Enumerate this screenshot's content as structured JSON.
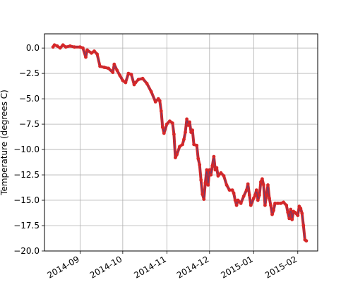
{
  "chart_data": {
    "type": "line",
    "ylabel": "Temperature (degrees C)",
    "xlabel": "",
    "title": "",
    "grid": true,
    "xlim": [
      "2014-08-07",
      "2015-02-15"
    ],
    "ylim": [
      -20,
      1.4
    ],
    "y_ticks": [
      {
        "value": 0,
        "label": "0.0"
      },
      {
        "value": -2.5,
        "label": "−2.5"
      },
      {
        "value": -5,
        "label": "−5.0"
      },
      {
        "value": -7.5,
        "label": "−7.5"
      },
      {
        "value": -10,
        "label": "−10.0"
      },
      {
        "value": -12.5,
        "label": "−12.5"
      },
      {
        "value": -15,
        "label": "−15.0"
      },
      {
        "value": -17.5,
        "label": "−17.5"
      },
      {
        "value": -20,
        "label": "−20.0"
      }
    ],
    "x_ticks": [
      {
        "value": "2014-09-01",
        "label": "2014-09"
      },
      {
        "value": "2014-10-01",
        "label": "2014-10"
      },
      {
        "value": "2014-11-01",
        "label": "2014-11"
      },
      {
        "value": "2014-12-01",
        "label": "2014-12"
      },
      {
        "value": "2015-01-01",
        "label": "2015-01"
      },
      {
        "value": "2015-02-01",
        "label": "2015-02"
      }
    ],
    "series": [
      {
        "color": "#d62728",
        "points": [
          [
            "2014-08-13",
            0.1
          ],
          [
            "2014-08-14",
            0.3
          ],
          [
            "2014-08-16",
            0.2
          ],
          [
            "2014-08-18",
            0.0
          ],
          [
            "2014-08-20",
            0.3
          ],
          [
            "2014-08-22",
            0.1
          ],
          [
            "2014-08-25",
            0.2
          ],
          [
            "2014-08-28",
            0.1
          ],
          [
            "2014-09-01",
            0.1
          ],
          [
            "2014-09-03",
            0.0
          ],
          [
            "2014-09-05",
            -0.9
          ],
          [
            "2014-09-06",
            -0.2
          ],
          [
            "2014-09-09",
            -0.5
          ],
          [
            "2014-09-11",
            -0.3
          ],
          [
            "2014-09-13",
            -0.6
          ],
          [
            "2014-09-15",
            -1.8
          ],
          [
            "2014-09-18",
            -1.9
          ],
          [
            "2014-09-21",
            -2.0
          ],
          [
            "2014-09-24",
            -2.4
          ],
          [
            "2014-09-25",
            -1.6
          ],
          [
            "2014-09-27",
            -2.2
          ],
          [
            "2014-09-29",
            -2.7
          ],
          [
            "2014-10-01",
            -3.2
          ],
          [
            "2014-10-03",
            -3.4
          ],
          [
            "2014-10-05",
            -2.5
          ],
          [
            "2014-10-07",
            -2.6
          ],
          [
            "2014-10-09",
            -3.6
          ],
          [
            "2014-10-10",
            -3.4
          ],
          [
            "2014-10-12",
            -3.1
          ],
          [
            "2014-10-15",
            -3.0
          ],
          [
            "2014-10-18",
            -3.5
          ],
          [
            "2014-10-21",
            -4.3
          ],
          [
            "2014-10-24",
            -5.3
          ],
          [
            "2014-10-26",
            -5.0
          ],
          [
            "2014-10-27",
            -5.2
          ],
          [
            "2014-10-28",
            -6.2
          ],
          [
            "2014-10-29",
            -7.8
          ],
          [
            "2014-10-30",
            -8.4
          ],
          [
            "2014-11-01",
            -7.5
          ],
          [
            "2014-11-03",
            -7.2
          ],
          [
            "2014-11-05",
            -7.4
          ],
          [
            "2014-11-06",
            -8.5
          ],
          [
            "2014-11-07",
            -10.8
          ],
          [
            "2014-11-08",
            -10.5
          ],
          [
            "2014-11-10",
            -9.7
          ],
          [
            "2014-11-12",
            -9.5
          ],
          [
            "2014-11-13",
            -9.0
          ],
          [
            "2014-11-14",
            -8.3
          ],
          [
            "2014-11-15",
            -7.0
          ],
          [
            "2014-11-16",
            -7.6
          ],
          [
            "2014-11-17",
            -7.3
          ],
          [
            "2014-11-18",
            -8.3
          ],
          [
            "2014-11-19",
            -8.1
          ],
          [
            "2014-11-20",
            -9.5
          ],
          [
            "2014-11-22",
            -9.6
          ],
          [
            "2014-11-23",
            -10.9
          ],
          [
            "2014-11-24",
            -11.5
          ],
          [
            "2014-11-25",
            -13.0
          ],
          [
            "2014-11-26",
            -14.4
          ],
          [
            "2014-11-27",
            -14.9
          ],
          [
            "2014-11-28",
            -13.3
          ],
          [
            "2014-11-29",
            -12.0
          ],
          [
            "2014-11-30",
            -13.5
          ],
          [
            "2014-12-01",
            -12.0
          ],
          [
            "2014-12-02",
            -12.5
          ],
          [
            "2014-12-03",
            -11.6
          ],
          [
            "2014-12-04",
            -10.7
          ],
          [
            "2014-12-05",
            -12.0
          ],
          [
            "2014-12-06",
            -11.8
          ],
          [
            "2014-12-07",
            -12.6
          ],
          [
            "2014-12-09",
            -12.3
          ],
          [
            "2014-12-11",
            -12.6
          ],
          [
            "2014-12-13",
            -13.5
          ],
          [
            "2014-12-15",
            -14.0
          ],
          [
            "2014-12-17",
            -14.0
          ],
          [
            "2014-12-18",
            -14.3
          ],
          [
            "2014-12-19",
            -15.0
          ],
          [
            "2014-12-20",
            -15.5
          ],
          [
            "2014-12-21",
            -15.0
          ],
          [
            "2014-12-23",
            -15.3
          ],
          [
            "2014-12-25",
            -14.6
          ],
          [
            "2014-12-27",
            -14.0
          ],
          [
            "2014-12-28",
            -13.4
          ],
          [
            "2014-12-29",
            -14.5
          ],
          [
            "2014-12-30",
            -15.5
          ],
          [
            "2015-01-01",
            -14.8
          ],
          [
            "2015-01-02",
            -14.5
          ],
          [
            "2015-01-03",
            -14.0
          ],
          [
            "2015-01-04",
            -15.0
          ],
          [
            "2015-01-05",
            -14.5
          ],
          [
            "2015-01-06",
            -13.2
          ],
          [
            "2015-01-07",
            -12.9
          ],
          [
            "2015-01-08",
            -13.5
          ],
          [
            "2015-01-09",
            -15.5
          ],
          [
            "2015-01-10",
            -14.5
          ],
          [
            "2015-01-11",
            -13.5
          ],
          [
            "2015-01-12",
            -14.8
          ],
          [
            "2015-01-13",
            -15.5
          ],
          [
            "2015-01-14",
            -16.4
          ],
          [
            "2015-01-15",
            -16.0
          ],
          [
            "2015-01-16",
            -15.3
          ],
          [
            "2015-01-18",
            -15.3
          ],
          [
            "2015-01-20",
            -15.3
          ],
          [
            "2015-01-22",
            -15.2
          ],
          [
            "2015-01-24",
            -15.5
          ],
          [
            "2015-01-25",
            -16.2
          ],
          [
            "2015-01-26",
            -16.8
          ],
          [
            "2015-01-27",
            -15.9
          ],
          [
            "2015-01-28",
            -16.9
          ],
          [
            "2015-01-29",
            -16.1
          ],
          [
            "2015-01-30",
            -16.2
          ],
          [
            "2015-02-01",
            -16.5
          ],
          [
            "2015-02-02",
            -15.6
          ],
          [
            "2015-02-03",
            -15.8
          ],
          [
            "2015-02-04",
            -16.3
          ],
          [
            "2015-02-05",
            -17.5
          ],
          [
            "2015-02-06",
            -18.9
          ],
          [
            "2015-02-07",
            -19.0
          ]
        ]
      }
    ]
  }
}
